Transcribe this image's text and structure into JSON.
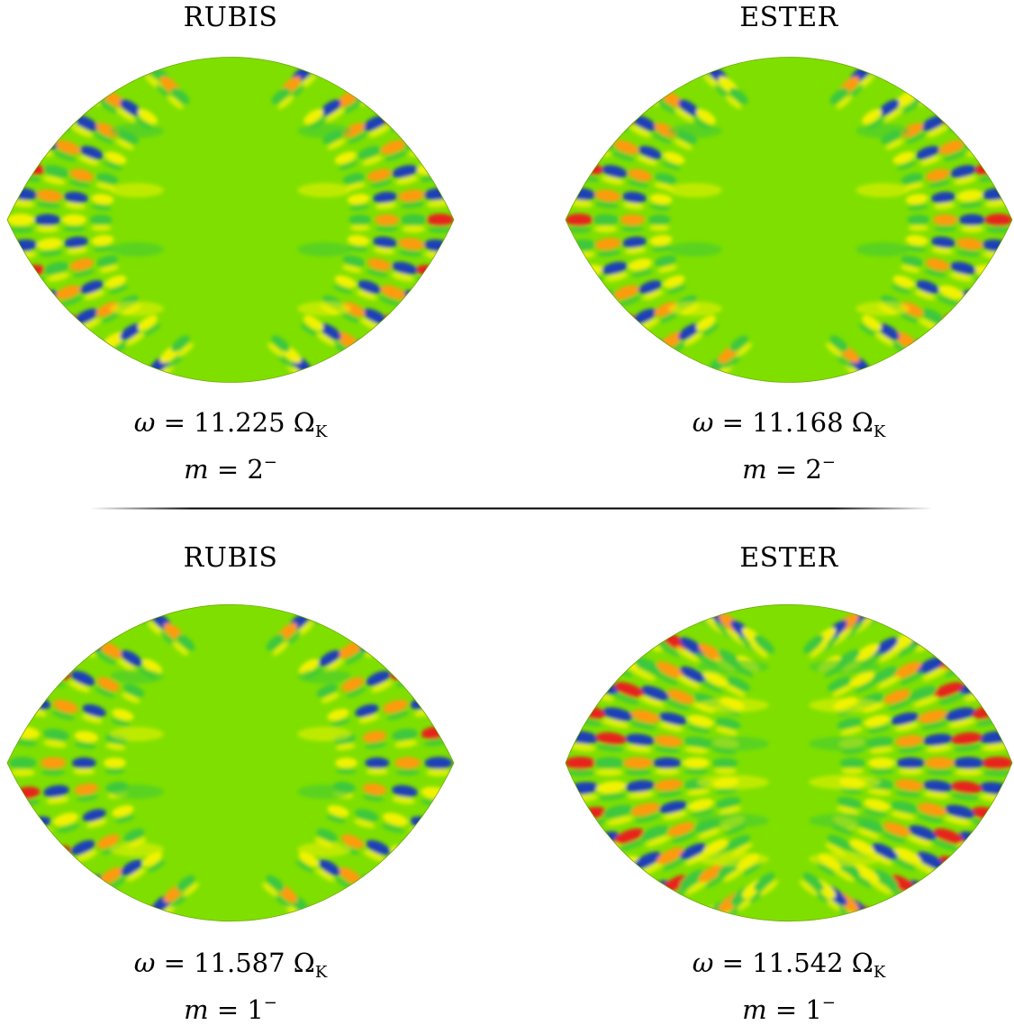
{
  "panels": [
    {
      "id": "top-left",
      "title": "RUBIS",
      "omega_value": "11.225",
      "omega_unit": "Ω",
      "omega_unit_sub": "K",
      "m_value": "2",
      "m_sign": "−",
      "lobes": "deep"
    },
    {
      "id": "top-right",
      "title": "ESTER",
      "omega_value": "11.168",
      "omega_unit": "Ω",
      "omega_unit_sub": "K",
      "m_value": "2",
      "m_sign": "−",
      "lobes": "deep"
    },
    {
      "id": "bottom-left",
      "title": "RUBIS",
      "omega_value": "11.587",
      "omega_unit": "Ω",
      "omega_unit_sub": "K",
      "m_value": "1",
      "m_sign": "−",
      "lobes": "wide"
    },
    {
      "id": "bottom-right",
      "title": "ESTER",
      "omega_value": "11.542",
      "omega_unit": "Ω",
      "omega_unit_sub": "K",
      "m_value": "1",
      "m_sign": "−",
      "lobes": "full"
    }
  ],
  "symbols": {
    "omega": "ω",
    "m": "m",
    "equals": "="
  },
  "colors": {
    "background_field": "#7fe000",
    "positive_strong": "#e8231c",
    "positive_mid": "#ff9a10",
    "positive_weak": "#f2f200",
    "negative_weak": "#3cc83c",
    "negative_strong": "#1a3fb8",
    "divider": "#000000"
  }
}
